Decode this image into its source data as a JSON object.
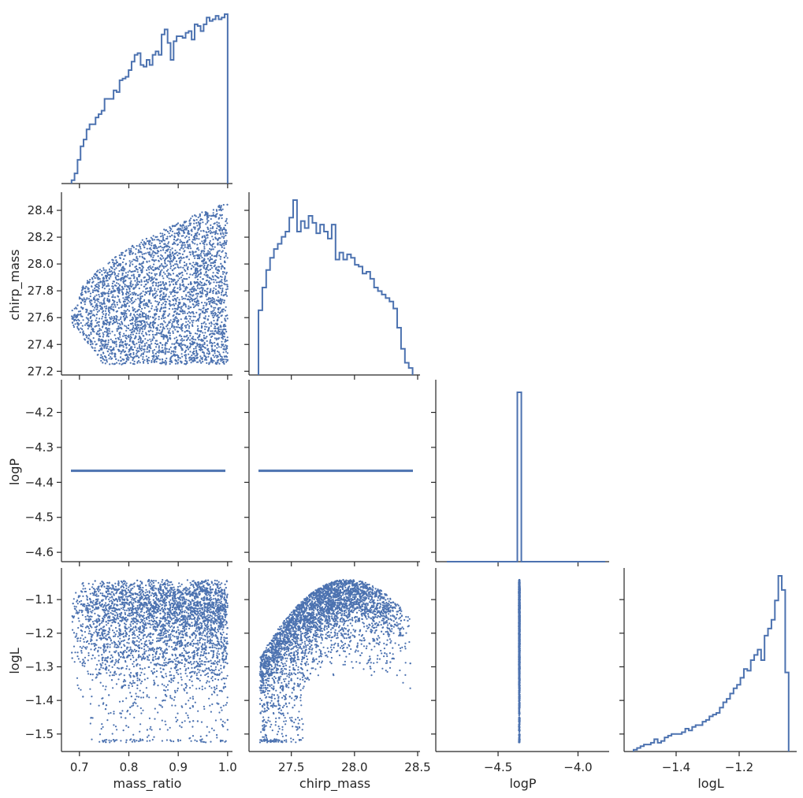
{
  "chart_data": {
    "type": "corner-plot",
    "color": "#4c72b0",
    "variables": [
      "mass_ratio",
      "chirp_mass",
      "logP",
      "logL"
    ],
    "axes": {
      "mass_ratio": {
        "label": "mass_ratio",
        "range": [
          0.67,
          1.005
        ],
        "ticks": [
          0.7,
          0.8,
          0.9,
          1.0
        ],
        "tick_labels": [
          "0.7",
          "0.8",
          "0.9",
          "1.0"
        ]
      },
      "chirp_mass": {
        "label": "chirp_mass",
        "range": [
          27.19,
          28.5
        ],
        "ticks": [
          27.2,
          27.4,
          27.6,
          27.8,
          28.0,
          28.2,
          28.4
        ],
        "tick_labels": [
          "27.2",
          "27.4",
          "27.6",
          "27.8",
          "28.0",
          "28.2",
          "28.4"
        ],
        "x_ticks": [
          27.5,
          28.0,
          28.5
        ],
        "x_tick_labels": [
          "27.5",
          "28.0",
          "28.5"
        ]
      },
      "logP": {
        "label": "logP",
        "range": [
          -4.62,
          -4.12
        ],
        "ticks": [
          -4.6,
          -4.5,
          -4.4,
          -4.3,
          -4.2
        ],
        "tick_labels": [
          "−4.6",
          "−4.5",
          "−4.4",
          "−4.3",
          "−4.2"
        ],
        "x_range": [
          -4.87,
          -3.82
        ],
        "x_ticks": [
          -4.5,
          -4.0
        ],
        "x_tick_labels": [
          "−4.5",
          "−4.0"
        ]
      },
      "logL": {
        "label": "logL",
        "range": [
          -1.545,
          -1.02
        ],
        "ticks": [
          -1.5,
          -1.4,
          -1.3,
          -1.2,
          -1.1
        ],
        "tick_labels": [
          "−1.5",
          "−1.4",
          "−1.3",
          "−1.2",
          "−1.1"
        ],
        "x_ticks": [
          -1.4,
          -1.2
        ],
        "x_tick_labels": [
          "−1.4",
          "−1.2"
        ]
      }
    },
    "logP_value": -4.367,
    "histograms": {
      "mass_ratio": {
        "range": [
          0.684,
          1.0
        ],
        "counts": [
          0.02,
          0.06,
          0.14,
          0.22,
          0.26,
          0.32,
          0.35,
          0.35,
          0.39,
          0.41,
          0.43,
          0.5,
          0.5,
          0.5,
          0.55,
          0.54,
          0.61,
          0.62,
          0.63,
          0.67,
          0.72,
          0.76,
          0.77,
          0.7,
          0.69,
          0.73,
          0.7,
          0.76,
          0.78,
          0.76,
          0.88,
          0.91,
          0.83,
          0.73,
          0.84,
          0.87,
          0.87,
          0.86,
          0.89,
          0.9,
          0.85,
          0.94,
          0.93,
          0.9,
          0.94,
          0.98,
          0.96,
          0.97,
          0.99,
          0.97,
          0.98,
          1.0
        ]
      },
      "chirp_mass": {
        "range": [
          27.24,
          28.46
        ],
        "counts": [
          0.37,
          0.5,
          0.6,
          0.67,
          0.72,
          0.75,
          0.79,
          0.82,
          0.9,
          1.0,
          0.82,
          0.88,
          0.84,
          0.91,
          0.87,
          0.81,
          0.86,
          0.82,
          0.78,
          0.86,
          0.66,
          0.7,
          0.66,
          0.69,
          0.67,
          0.63,
          0.62,
          0.58,
          0.59,
          0.55,
          0.5,
          0.48,
          0.46,
          0.44,
          0.42,
          0.38,
          0.27,
          0.15,
          0.07,
          0.04
        ]
      },
      "logP": {
        "peak_value": -4.367,
        "peak_width": 0.025
      },
      "logL": {
        "range": [
          -1.535,
          -1.043
        ],
        "counts": [
          0.01,
          0.02,
          0.03,
          0.04,
          0.04,
          0.05,
          0.07,
          0.05,
          0.06,
          0.08,
          0.09,
          0.1,
          0.1,
          0.1,
          0.11,
          0.13,
          0.12,
          0.14,
          0.15,
          0.15,
          0.17,
          0.18,
          0.2,
          0.21,
          0.22,
          0.25,
          0.28,
          0.3,
          0.33,
          0.36,
          0.38,
          0.42,
          0.47,
          0.46,
          0.52,
          0.55,
          0.58,
          0.52,
          0.66,
          0.7,
          0.75,
          0.86,
          1.0,
          0.92,
          0.45
        ]
      }
    },
    "scatter_point_count": 4000
  }
}
